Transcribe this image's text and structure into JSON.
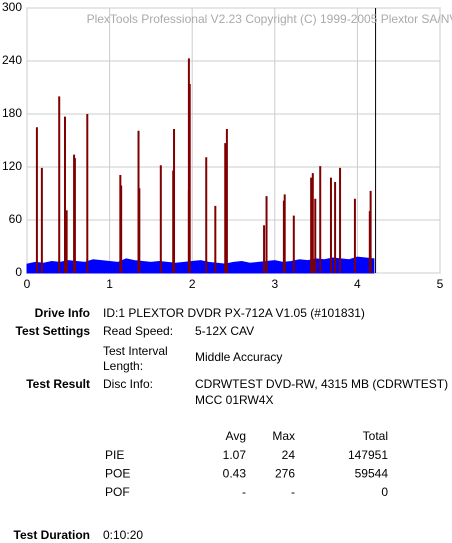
{
  "chart_data": {
    "type": "line",
    "title": "PlexTools Professional V2.23 Copyright (C) 1999-2005 Plextor SA/NV",
    "xlim": [
      0,
      5
    ],
    "xticks": [
      0,
      1,
      2,
      3,
      4,
      5
    ],
    "ylim": [
      0,
      300
    ],
    "yticks": [
      0,
      60,
      120,
      180,
      240,
      300
    ],
    "grid": true,
    "series": [
      {
        "kind": "area",
        "color": "#0000ff",
        "x": [
          0,
          0.1,
          0.2,
          0.3,
          0.4,
          0.5,
          0.6,
          0.7,
          0.8,
          0.9,
          1,
          1.1,
          1.2,
          1.3,
          1.4,
          1.5,
          1.6,
          1.7,
          1.8,
          1.9,
          2,
          2.1,
          2.2,
          2.3,
          2.4,
          2.5,
          2.6,
          2.7,
          2.8,
          2.9,
          3,
          3.1,
          3.2,
          3.3,
          3.4,
          3.5,
          3.6,
          3.7,
          3.8,
          3.9,
          4,
          4.1,
          4.2
        ],
        "values": [
          10,
          12,
          11,
          13,
          12,
          14,
          13,
          12,
          15,
          14,
          13,
          12,
          16,
          14,
          13,
          12,
          13,
          12,
          11,
          12,
          13,
          14,
          12,
          11,
          10,
          12,
          13,
          11,
          12,
          13,
          14,
          12,
          13,
          15,
          14,
          16,
          15,
          17,
          16,
          15,
          18,
          17,
          16
        ]
      },
      {
        "kind": "spikes",
        "color": "#800000",
        "x": [
          0.12,
          0.18,
          0.39,
          0.46,
          0.48,
          0.57,
          0.58,
          0.73,
          1.13,
          1.14,
          1.35,
          1.36,
          1.62,
          1.77,
          1.78,
          1.96,
          1.97,
          1.96,
          2.17,
          2.28,
          2.4,
          2.42,
          2.87,
          2.9,
          3.11,
          3.12,
          3.23,
          3.44,
          3.46,
          3.49,
          3.55,
          3.68,
          3.73,
          3.79,
          3.97,
          4.15,
          4.16
        ],
        "values": [
          165,
          119,
          200,
          177,
          71,
          134,
          130,
          180,
          111,
          99,
          161,
          96,
          122,
          116,
          163,
          243,
          214,
          94,
          131,
          76,
          147,
          163,
          54,
          87,
          82,
          89,
          65,
          108,
          113,
          84,
          121,
          108,
          103,
          119,
          84,
          70,
          93
        ]
      }
    ],
    "end_line": {
      "x": 4.22,
      "color": "#000000"
    }
  },
  "info": {
    "drive_info": {
      "label": "Drive Info",
      "value": "ID:1 PLEXTOR DVDR PX-712A V1.05 (#101831)"
    },
    "test_settings": {
      "label": "Test Settings",
      "read_speed_label": "Read Speed:",
      "read_speed": "5-12X CAV",
      "interval_label": [
        "Test Interval",
        "Length:"
      ],
      "interval": "Middle Accuracy"
    },
    "test_result": {
      "label": "Test Result",
      "disc_info_label": "Disc Info:",
      "disc_info": [
        "CDRWTEST DVD-RW, 4315 MB (CDRWTEST)",
        "MCC 01RW4X"
      ]
    },
    "stats": {
      "header": [
        "Avg",
        "Max",
        "Total"
      ],
      "rows": [
        [
          "PIE",
          1.07,
          24,
          147951
        ],
        [
          "POE",
          0.43,
          276,
          59544
        ],
        [
          "POF",
          "-",
          "-",
          0
        ]
      ]
    },
    "test_duration": {
      "label": "Test Duration",
      "value": "0:10:20"
    }
  }
}
